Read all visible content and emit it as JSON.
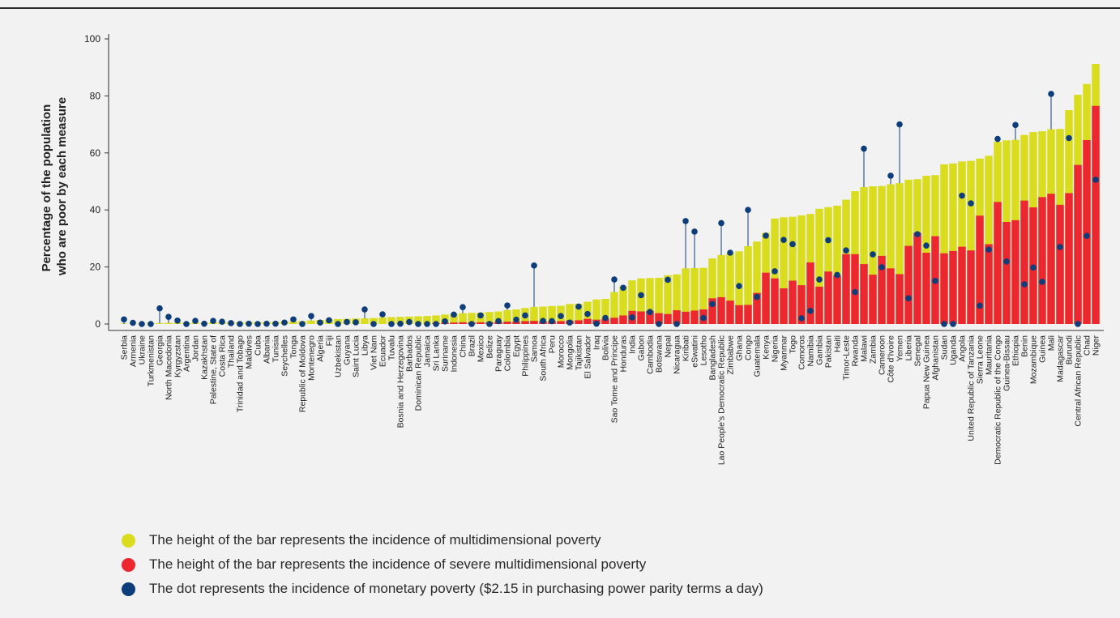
{
  "chart_data": {
    "type": "bar",
    "ylabel": "Percentage of the population who are poor by each measure",
    "ylabel_lines": [
      "Percentage of the population",
      "who are poor by each measure"
    ],
    "ylim": [
      0,
      100
    ],
    "yticks": [
      0,
      20,
      40,
      60,
      80,
      100
    ],
    "grid": false,
    "legend_position": "bottom",
    "categories": [
      "Serbia",
      "Armenia",
      "Ukraine",
      "Turkmenistan",
      "Georgia",
      "North Macedonia",
      "Kyrgyzstan",
      "Argentina",
      "Jordan",
      "Kazakhstan",
      "Palestine, State of",
      "Costa Rica",
      "Thailand",
      "Trinidad and Tobago",
      "Maldives",
      "Cuba",
      "Albania",
      "Tunisia",
      "Seychelles",
      "Tonga",
      "Republic of Moldova",
      "Montenegro",
      "Algeria",
      "Fiji",
      "Uzbekistan",
      "Guyana",
      "Saint Lucia",
      "Libya",
      "Viet Nam",
      "Ecuador",
      "Tuvalu",
      "Bosnia and Herzegovina",
      "Barbados",
      "Dominican Republic",
      "Jamaica",
      "Sri Lanka",
      "Suriname",
      "Indonesia",
      "China",
      "Brazil",
      "Mexico",
      "Belize",
      "Paraguay",
      "Colombia",
      "Egypt",
      "Philippines",
      "Samoa",
      "South Africa",
      "Peru",
      "Morocco",
      "Mongolia",
      "Tajikistan",
      "El Salvador",
      "Iraq",
      "Bolivia",
      "Sao Tome and Principe",
      "Honduras",
      "India",
      "Gabon",
      "Cambodia",
      "Botswana",
      "Nepal",
      "Nicaragua",
      "Kiribati",
      "eSwatini",
      "Lesotho",
      "Bangladesh",
      "Lao People's Democratic Republic",
      "Zimbabwe",
      "Ghana",
      "Congo",
      "Guatemala",
      "Kenya",
      "Nigeria",
      "Myanmar",
      "Togo",
      "Comoros",
      "Namibia",
      "Gambia",
      "Pakistan",
      "Haiti",
      "Timor-Leste",
      "Rwanda",
      "Malawi",
      "Zambia",
      "Cameroon",
      "Côte d'Ivoire",
      "Yemen",
      "Liberia",
      "Senegal",
      "Papua New Guinea",
      "Afghanistan",
      "Sudan",
      "Uganda",
      "Angola",
      "United Republic of Tanzania",
      "Sierra Leone",
      "Mauritania",
      "Democratic Republic of the Congo",
      "Guinea-Bissau",
      "Ethiopia",
      "Benin",
      "Mozambique",
      "Guinea",
      "Mali",
      "Madagascar",
      "Burundi",
      "Central African Republic",
      "Chad",
      "Niger"
    ],
    "series": [
      {
        "name": "The height of the bar represents the incidence of multidimensional poverty",
        "color": "#d9dd1e",
        "values": [
          0,
          0,
          0,
          0.3,
          0.3,
          0.4,
          0.4,
          0.5,
          0.4,
          0.5,
          0.6,
          0.6,
          0.6,
          0.6,
          0.7,
          0.7,
          0.7,
          0.8,
          0.9,
          0.9,
          1,
          1.2,
          1.4,
          1.6,
          1.7,
          1.8,
          1.9,
          2,
          2.1,
          2.3,
          2.4,
          2.5,
          2.6,
          2.7,
          2.8,
          3,
          3.3,
          3.6,
          3.8,
          3.9,
          4,
          4.2,
          4.4,
          4.9,
          5.1,
          5.6,
          6,
          6.1,
          6.3,
          6.4,
          7,
          7.1,
          7.8,
          8.6,
          8.8,
          11.2,
          13.2,
          15.3,
          16,
          16.1,
          16.2,
          17.1,
          17.4,
          19.5,
          19.6,
          19.7,
          23,
          24.2,
          24.8,
          25.5,
          27.3,
          28.9,
          32,
          37,
          37.4,
          37.6,
          38.1,
          38.6,
          40.4,
          41,
          41.5,
          43.6,
          46.6,
          48,
          48.3,
          48.4,
          49,
          49.4,
          50.6,
          50.8,
          52,
          52.2,
          56,
          56.3,
          57,
          57.2,
          58,
          59,
          63.9,
          64.4,
          64.6,
          66.3,
          67.3,
          67.6,
          68.3,
          68.4,
          75,
          80.4,
          84.2,
          91.2
        ]
      },
      {
        "name": "The height of the bar represents the incidence of severe multidimensional poverty",
        "color": "#ec2730",
        "values": [
          0,
          0,
          0,
          0,
          0,
          0,
          0,
          0,
          0,
          0,
          0,
          0,
          0,
          0,
          0,
          0,
          0,
          0,
          0,
          0,
          0,
          0,
          0,
          0,
          0,
          0,
          0,
          0,
          0,
          0,
          0,
          0,
          0,
          0,
          0,
          0.3,
          0.4,
          0.5,
          0.6,
          0.5,
          0.6,
          0.6,
          0.7,
          0.8,
          0.8,
          1,
          1.1,
          0.9,
          1,
          1,
          1.2,
          1.3,
          1.8,
          1.5,
          1.8,
          2.2,
          3,
          4.6,
          4.4,
          4.6,
          3.8,
          3.5,
          4.8,
          4.3,
          4.7,
          5.1,
          9,
          9.4,
          8.2,
          6.6,
          6.7,
          10.9,
          18,
          16,
          12.5,
          15.2,
          13.6,
          21.6,
          13.1,
          18.4,
          17,
          24.5,
          24.5,
          21,
          17.3,
          23.9,
          19.5,
          17.5,
          27.4,
          32,
          25,
          30.8,
          24.8,
          25.6,
          27.1,
          25.8,
          38,
          28,
          42.8,
          35.8,
          36.4,
          43.3,
          40.9,
          44.5,
          45.7,
          41.8,
          45.9,
          55.8,
          64.5,
          76.5
        ]
      },
      {
        "name": "The dot represents the incidence of monetary poverty ($2.15 in purchasing power parity terms a day)",
        "color": "#0d3d7a",
        "values": [
          1.6,
          0.4,
          0,
          0,
          5.5,
          2.5,
          1.2,
          0,
          1.1,
          0.1,
          1.1,
          0.8,
          0.3,
          0,
          0.1,
          0,
          0.1,
          0.1,
          0.5,
          1.6,
          0,
          2.8,
          0.5,
          1.3,
          0,
          0.7,
          0.6,
          5.1,
          0,
          3.4,
          0,
          0.1,
          0.7,
          0,
          0,
          0,
          0.9,
          3.3,
          5.9,
          0,
          3,
          0,
          1,
          6.5,
          1.5,
          3,
          20.5,
          1.1,
          1,
          2.8,
          0.5,
          6.1,
          3.5,
          0.1,
          2.1,
          15.6,
          12.7,
          2.3,
          10.1,
          4.2,
          0,
          15.5,
          0,
          36.1,
          32.4,
          2.1,
          7,
          35.4,
          25,
          13.3,
          40,
          9.5,
          31,
          18.5,
          29.5,
          28,
          2,
          4.6,
          15.6,
          29.4,
          17.2,
          25.8,
          11.2,
          61.5,
          24.4,
          19.9,
          52,
          70,
          9,
          31.5,
          27.5,
          15.1,
          0,
          0,
          45,
          42.3,
          6.4,
          26.1,
          64.9,
          21.9,
          69.8,
          13.9,
          19.8,
          14.8,
          80.7,
          27,
          65.2,
          0,
          30.9,
          50.6
        ]
      }
    ]
  }
}
